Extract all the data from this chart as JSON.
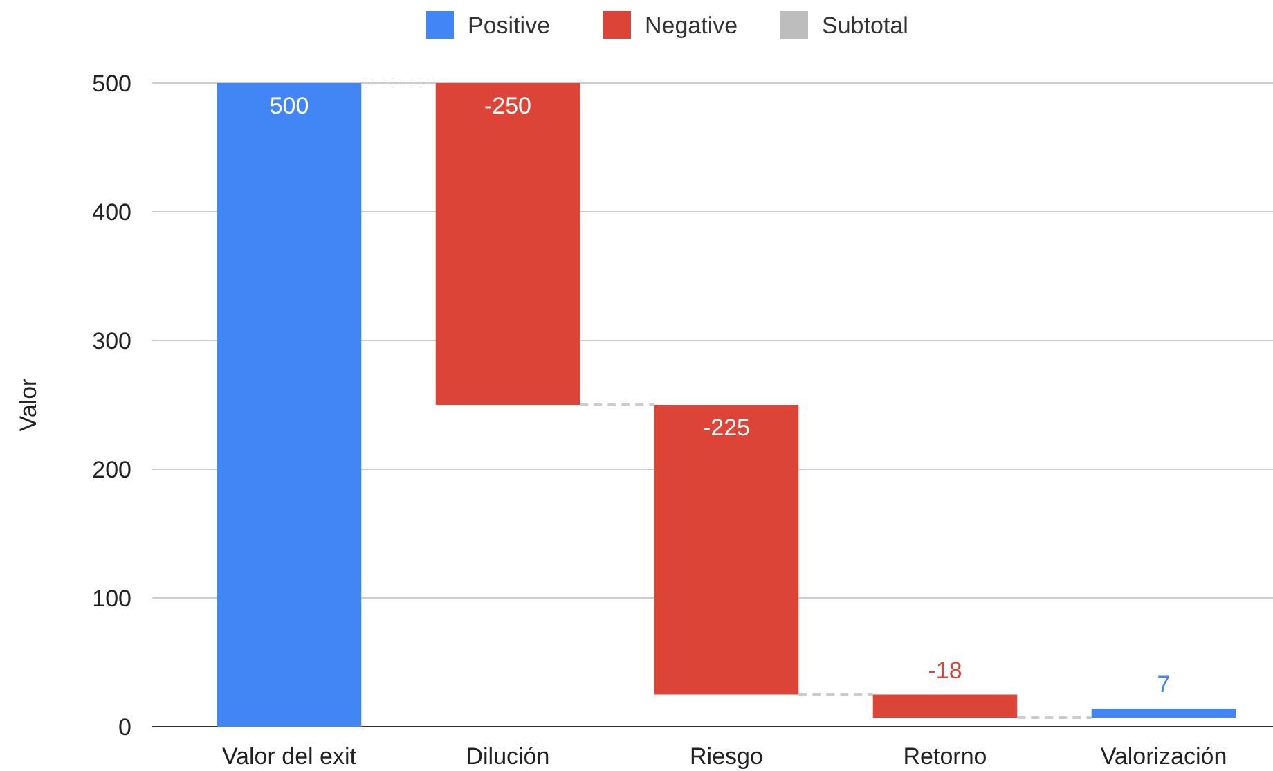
{
  "chart_data": {
    "type": "bar",
    "ylabel": "Valor",
    "categories": [
      "Valor del exit",
      "Dilución",
      "Riesgo",
      "Retorno",
      "Valorización"
    ],
    "series": [
      {
        "name": "Positive",
        "color": "#4285f4",
        "values": [
          500,
          null,
          null,
          null,
          7
        ],
        "base": [
          0,
          null,
          null,
          null,
          7
        ]
      },
      {
        "name": "Negative",
        "color": "#db4437",
        "values": [
          null,
          -250,
          -225,
          -18,
          null
        ],
        "base": [
          null,
          500,
          250,
          25,
          null
        ]
      },
      {
        "name": "Subtotal",
        "color": "#bdbdbd",
        "values": [
          null,
          null,
          null,
          null,
          null
        ]
      }
    ],
    "ylim": [
      0,
      500
    ],
    "yticks": [
      0,
      100,
      200,
      300,
      400,
      500
    ],
    "grid": "y",
    "legend": "top",
    "data_labels": true
  }
}
